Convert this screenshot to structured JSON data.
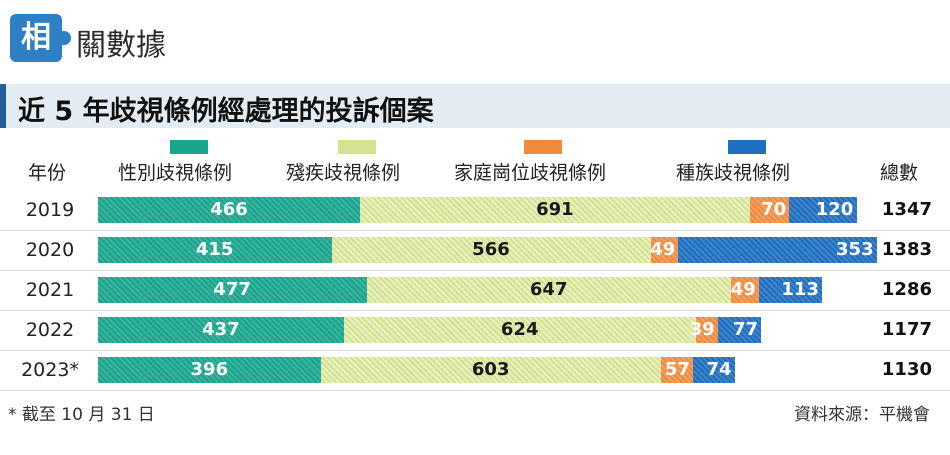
{
  "header": {
    "badge": "相",
    "section_label": "關數據"
  },
  "chart_data": {
    "type": "bar",
    "stacked": true,
    "orientation": "horizontal",
    "title": "近 5 年歧視條例經處理的投訴個案",
    "year_header": "年份",
    "total_header": "總數",
    "categories": [
      "2019",
      "2020",
      "2021",
      "2022",
      "2023*"
    ],
    "series": [
      {
        "name": "性別歧視條例",
        "color": "#1aa58d",
        "values": [
          466,
          415,
          477,
          437,
          396
        ]
      },
      {
        "name": "殘疾歧視條例",
        "color": "#d4e38f",
        "values": [
          691,
          566,
          647,
          624,
          603
        ]
      },
      {
        "name": "家庭崗位歧視條例",
        "color": "#f08a3c",
        "values": [
          70,
          49,
          49,
          39,
          57
        ]
      },
      {
        "name": "種族歧視條例",
        "color": "#1f6fc0",
        "values": [
          120,
          353,
          113,
          77,
          74
        ]
      }
    ],
    "totals": [
      "1347",
      "1383",
      "1286",
      "1177",
      "1130"
    ],
    "footnote": "* 截至 10 月 31 日",
    "source": "資料來源：平機會"
  }
}
